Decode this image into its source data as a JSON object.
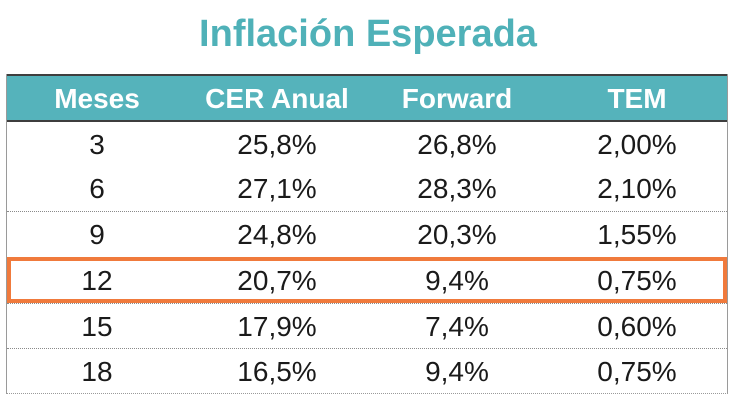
{
  "title": "Inflación Esperada",
  "highlight_color": "#f07a3c",
  "header_color": "#55b3bb",
  "title_color": "#4fb1b8",
  "chart_data": {
    "type": "table",
    "title": "Inflación Esperada",
    "columns": [
      "Meses",
      "CER Anual",
      "Forward",
      "TEM"
    ],
    "rows": [
      [
        "3",
        "25,8%",
        "26,8%",
        "2,00%"
      ],
      [
        "6",
        "27,1%",
        "28,3%",
        "2,10%"
      ],
      [
        "9",
        "24,8%",
        "20,3%",
        "1,55%"
      ],
      [
        "12",
        "20,7%",
        "9,4%",
        "0,75%"
      ],
      [
        "15",
        "17,9%",
        "7,4%",
        "0,60%"
      ],
      [
        "18",
        "16,5%",
        "9,4%",
        "0,75%"
      ]
    ],
    "highlighted_row_index": 3
  }
}
